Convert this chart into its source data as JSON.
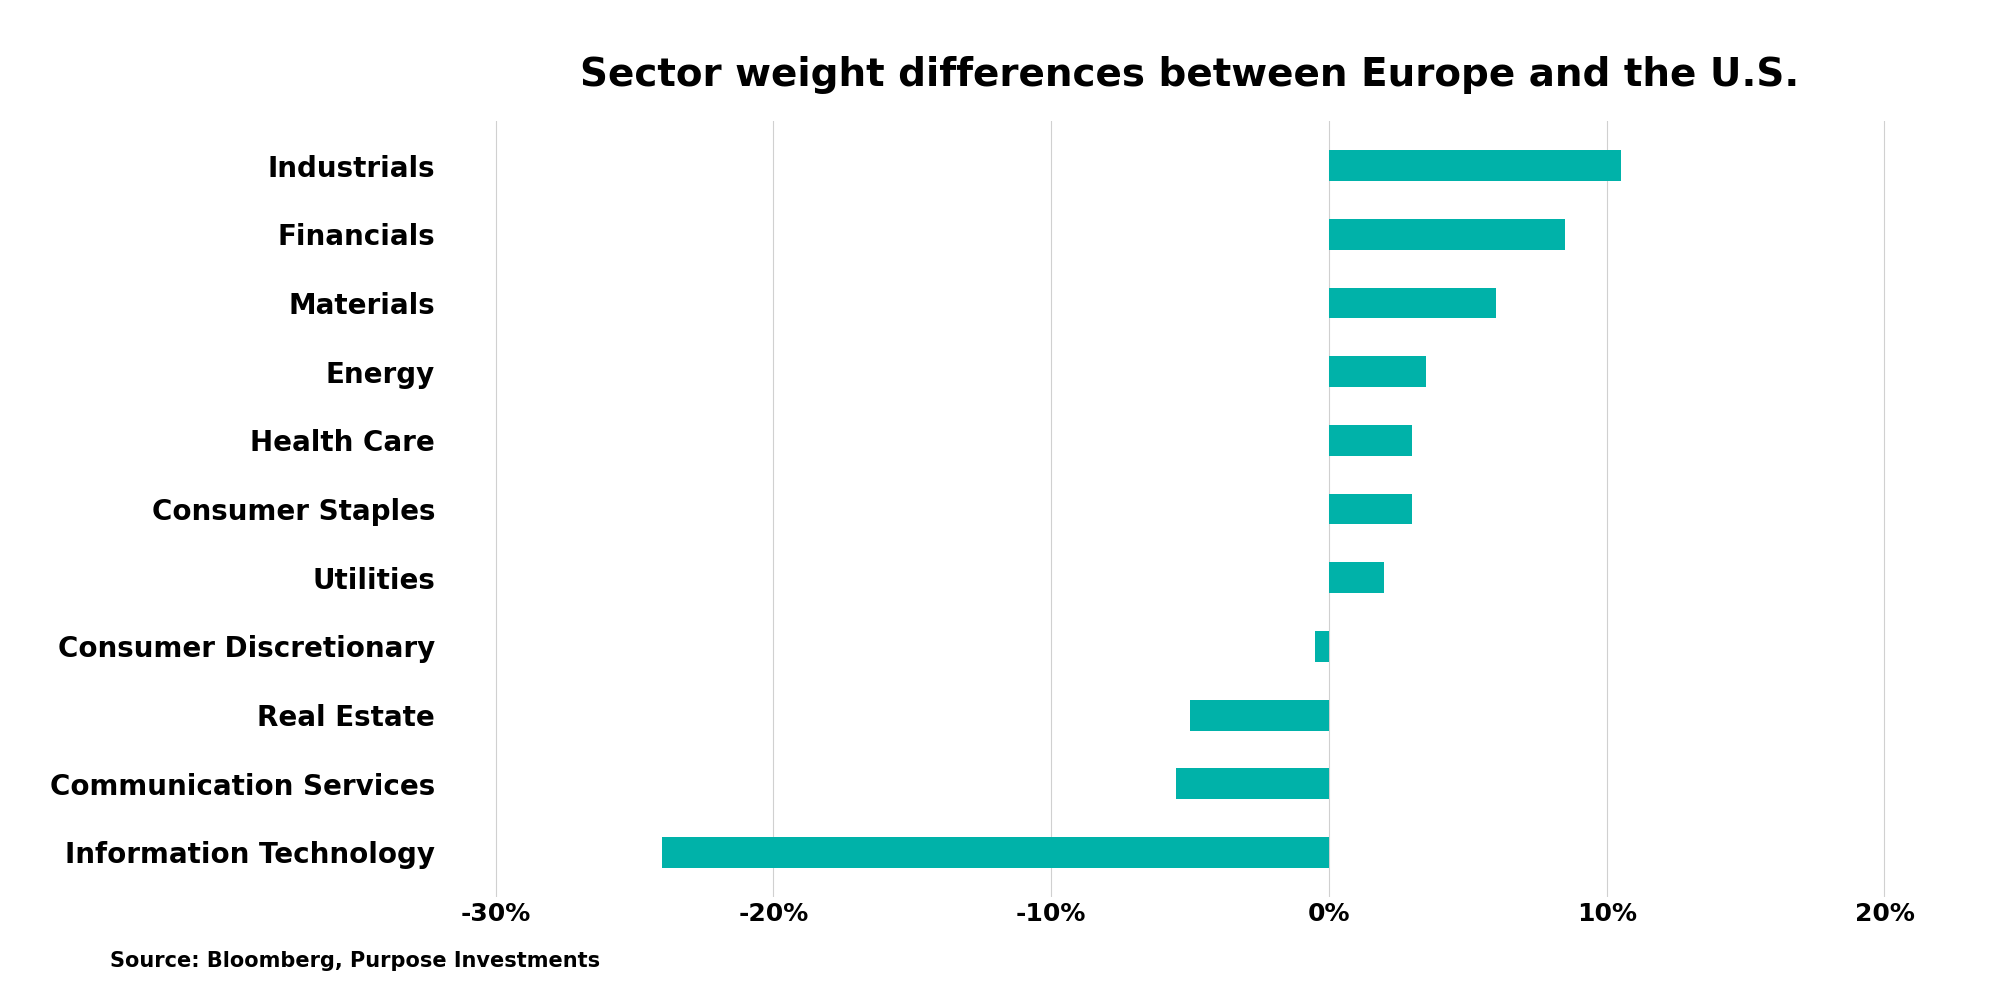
{
  "title": "Sector weight differences between Europe and the U.S.",
  "source_text": "Source: Bloomberg, Purpose Investments",
  "categories": [
    "Information Technology",
    "Communication Services",
    "Real Estate",
    "Consumer Discretionary",
    "Utilities",
    "Consumer Staples",
    "Health Care",
    "Energy",
    "Materials",
    "Financials",
    "Industrials"
  ],
  "values": [
    -24.0,
    -5.5,
    -5.0,
    -0.5,
    2.0,
    3.0,
    3.0,
    3.5,
    6.0,
    8.5,
    10.5
  ],
  "bar_color": "#00B2A9",
  "background_color": "#FFFFFF",
  "xlim": [
    -32,
    22
  ],
  "xticks": [
    -30,
    -20,
    -10,
    0,
    10,
    20
  ],
  "xtick_labels": [
    "-30%",
    "-20%",
    "-10%",
    "0%",
    "10%",
    "20%"
  ],
  "title_fontsize": 28,
  "label_fontsize": 20,
  "tick_fontsize": 18,
  "source_fontsize": 15,
  "bar_height": 0.45
}
